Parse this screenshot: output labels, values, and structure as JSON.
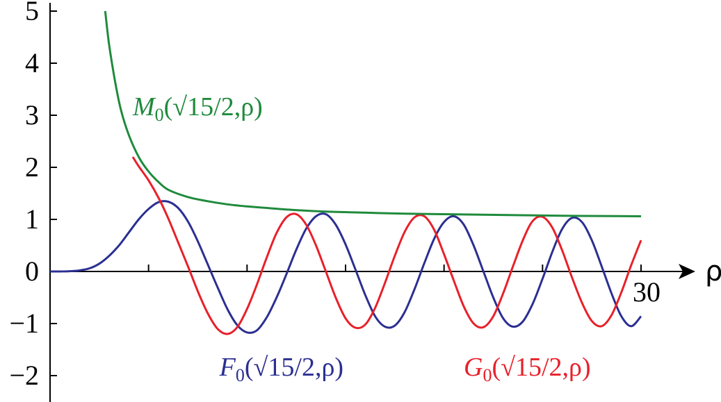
{
  "chart_data": {
    "type": "line",
    "title": "",
    "xlabel": "ρ",
    "ylabel": "",
    "xlim": [
      0,
      30
    ],
    "ylim": [
      -2.5,
      5
    ],
    "grid": false,
    "x_ticks": [
      5,
      10,
      15,
      20,
      25,
      30
    ],
    "x_tick_labels": [
      {
        "value": 30,
        "label": "30"
      }
    ],
    "y_ticks": [
      -2,
      -1,
      0,
      1,
      2,
      3,
      4,
      5
    ],
    "y_tick_labels": [
      "−2",
      "−1",
      "0",
      "1",
      "2",
      "3",
      "4",
      "5"
    ],
    "series": [
      {
        "name": "M0",
        "color": "#1f8a3c",
        "label": {
          "symbol": "M",
          "sub": "0",
          "args": "(√15/2,ρ)",
          "at": [
            4.2,
            3.0
          ]
        },
        "x": [
          2.8,
          3.0,
          3.3,
          3.6,
          4.0,
          4.5,
          5.0,
          5.5,
          6.0,
          7.0,
          8.0,
          9.0,
          10.0,
          11.0,
          12.0,
          14.0,
          16.0,
          18.0,
          20.0,
          22.0,
          24.0,
          26.0,
          28.0,
          30.0
        ],
        "values": [
          5.0,
          4.35,
          3.65,
          3.1,
          2.62,
          2.2,
          1.92,
          1.72,
          1.57,
          1.43,
          1.35,
          1.29,
          1.25,
          1.22,
          1.19,
          1.15,
          1.13,
          1.11,
          1.1,
          1.09,
          1.08,
          1.07,
          1.065,
          1.06
        ]
      },
      {
        "name": "F0",
        "color": "#2b2f91",
        "label": {
          "symbol": "F",
          "sub": "0",
          "args": "(√15/2,ρ)",
          "at": [
            8.6,
            -2.0
          ]
        },
        "x": [
          0.0,
          0.5,
          1.0,
          1.5,
          2.0,
          2.5,
          3.0,
          3.5,
          4.0,
          4.5,
          5.0,
          5.5,
          6.0,
          6.5,
          7.0,
          7.5,
          8.0,
          8.5,
          9.0,
          9.5,
          10.0,
          10.5,
          11.0,
          11.5,
          12.0,
          12.5,
          13.0,
          13.5,
          14.0,
          14.5,
          15.0,
          15.5,
          16.0,
          16.5,
          17.0,
          17.5,
          18.0,
          18.5,
          19.0,
          19.5,
          20.0,
          20.5,
          21.0,
          21.5,
          22.0,
          22.5,
          23.0,
          23.5,
          24.0,
          24.5,
          25.0,
          25.5,
          26.0,
          26.5,
          27.0,
          27.5,
          28.0,
          28.5,
          29.0,
          29.5,
          30.0
        ],
        "values": [
          0.0,
          0.0,
          0.005,
          0.02,
          0.06,
          0.15,
          0.3,
          0.5,
          0.75,
          1.0,
          1.2,
          1.33,
          1.34,
          1.22,
          0.96,
          0.58,
          0.14,
          -0.3,
          -0.72,
          -1.03,
          -1.17,
          -1.13,
          -0.88,
          -0.5,
          -0.05,
          0.42,
          0.82,
          1.06,
          1.1,
          0.9,
          0.52,
          0.04,
          -0.45,
          -0.86,
          -1.06,
          -1.04,
          -0.78,
          -0.34,
          0.16,
          0.63,
          0.95,
          1.06,
          0.9,
          0.5,
          0.0,
          -0.5,
          -0.9,
          -1.06,
          -0.96,
          -0.62,
          -0.14,
          0.38,
          0.82,
          1.03,
          0.95,
          0.6,
          0.1,
          -0.42,
          -0.86,
          -1.05,
          -0.86
        ]
      },
      {
        "name": "G0",
        "color": "#e8202a",
        "label": {
          "symbol": "G",
          "sub": "0",
          "args": "(√15/2,ρ)",
          "at": [
            21.0,
            -2.0
          ]
        },
        "x": [
          4.2,
          4.5,
          5.0,
          5.5,
          6.0,
          6.5,
          7.0,
          7.5,
          8.0,
          8.5,
          9.0,
          9.5,
          10.0,
          10.5,
          11.0,
          11.5,
          12.0,
          12.5,
          13.0,
          13.5,
          14.0,
          14.5,
          15.0,
          15.5,
          16.0,
          16.5,
          17.0,
          17.5,
          18.0,
          18.5,
          19.0,
          19.5,
          20.0,
          20.5,
          21.0,
          21.5,
          22.0,
          22.5,
          23.0,
          23.5,
          24.0,
          24.5,
          25.0,
          25.5,
          26.0,
          26.5,
          27.0,
          27.5,
          28.0,
          28.5,
          29.0,
          29.5,
          30.0
        ],
        "values": [
          2.2,
          2.02,
          1.75,
          1.42,
          1.02,
          0.56,
          0.1,
          -0.38,
          -0.8,
          -1.1,
          -1.2,
          -1.07,
          -0.72,
          -0.25,
          0.27,
          0.74,
          1.04,
          1.1,
          0.9,
          0.5,
          0.0,
          -0.5,
          -0.9,
          -1.08,
          -1.02,
          -0.7,
          -0.22,
          0.3,
          0.76,
          1.04,
          1.06,
          0.8,
          0.33,
          -0.18,
          -0.67,
          -1.0,
          -1.07,
          -0.86,
          -0.42,
          0.1,
          0.6,
          0.97,
          1.05,
          0.84,
          0.4,
          -0.12,
          -0.6,
          -0.95,
          -1.05,
          -0.84,
          -0.4,
          0.12,
          0.6
        ]
      }
    ]
  }
}
